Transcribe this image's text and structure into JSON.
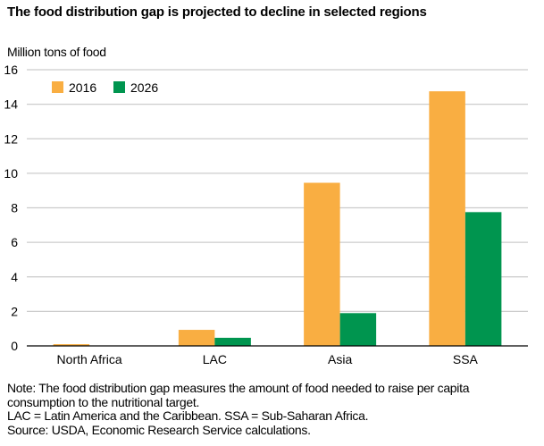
{
  "chart_data": {
    "type": "bar",
    "title": "The food distribution gap is projected to decline in selected regions",
    "ylabel": "Million tons of food",
    "xlabel": "",
    "categories": [
      "North Africa",
      "LAC",
      "Asia",
      "SSA"
    ],
    "series": [
      {
        "name": "2016",
        "color": "#F9AE42",
        "values": [
          0.1,
          0.93,
          9.45,
          14.75
        ]
      },
      {
        "name": "2026",
        "color": "#00954F",
        "values": [
          0.0,
          0.47,
          1.9,
          7.75
        ]
      }
    ],
    "ylim": [
      0,
      16
    ],
    "yticks": [
      0,
      2,
      4,
      6,
      8,
      10,
      12,
      14,
      16
    ],
    "grid": true,
    "legend_position": "top-left"
  },
  "notes": [
    "Note: The food distribution gap measures the amount of food needed to raise per capita",
    "consumption to the nutritional target.",
    "LAC = Latin America and the Caribbean. SSA = Sub-Saharan Africa.",
    "Source: USDA, Economic Research Service calculations."
  ]
}
